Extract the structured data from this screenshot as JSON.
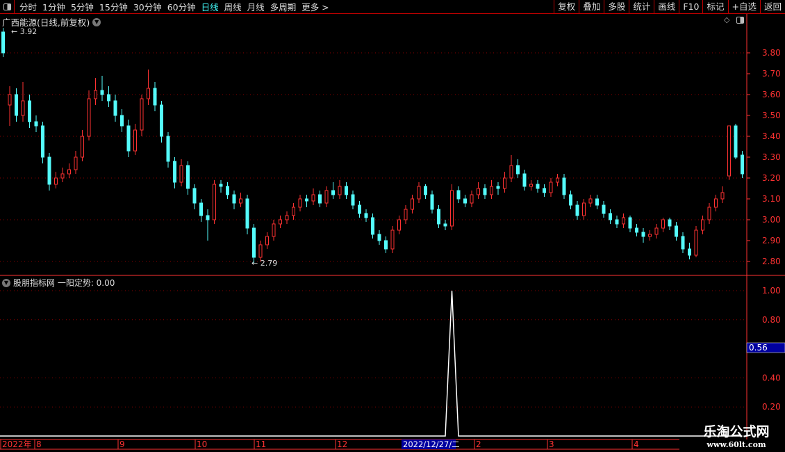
{
  "toolbar": {
    "periods": [
      "分时",
      "1分钟",
      "5分钟",
      "15分钟",
      "30分钟",
      "60分钟",
      "日线",
      "周线",
      "月线",
      "多周期",
      "更多 >"
    ],
    "active": "日线",
    "right_buttons": [
      "复权",
      "叠加",
      "多股",
      "统计",
      "画线",
      "F10",
      "标记",
      "+自选",
      "返回"
    ]
  },
  "main_title": "广西能源(日线,前复权)",
  "indicator_title": "股朋指标网 一阳定势: 0.00",
  "watermark": {
    "name": "乐淘公式网",
    "url": "www.60lt.com"
  },
  "colors": {
    "up": "#ff3232",
    "down": "#54fcfc",
    "grid": "#8b0000",
    "axis": "#ff3232",
    "highlight": "#0000a0"
  },
  "chart_data": [
    {
      "type": "candlestick",
      "yaxis_labels": [
        "3.80",
        "3.70",
        "3.60",
        "3.50",
        "3.40",
        "3.30",
        "3.20",
        "3.10",
        "3.00",
        "2.90",
        "2.80"
      ],
      "ylim": [
        2.76,
        3.98
      ],
      "annotations": {
        "max": "3.92",
        "min": "2.79"
      },
      "candles_ohlc": [
        [
          3.9,
          3.92,
          3.78,
          3.8
        ],
        [
          3.55,
          3.64,
          3.45,
          3.6
        ],
        [
          3.6,
          3.63,
          3.47,
          3.5
        ],
        [
          3.5,
          3.66,
          3.47,
          3.57
        ],
        [
          3.57,
          3.6,
          3.44,
          3.47
        ],
        [
          3.47,
          3.5,
          3.42,
          3.45
        ],
        [
          3.45,
          3.47,
          3.27,
          3.3
        ],
        [
          3.3,
          3.32,
          3.14,
          3.17
        ],
        [
          3.17,
          3.23,
          3.15,
          3.2
        ],
        [
          3.2,
          3.25,
          3.18,
          3.22
        ],
        [
          3.22,
          3.27,
          3.2,
          3.24
        ],
        [
          3.24,
          3.33,
          3.22,
          3.3
        ],
        [
          3.3,
          3.43,
          3.28,
          3.4
        ],
        [
          3.4,
          3.62,
          3.38,
          3.58
        ],
        [
          3.58,
          3.68,
          3.55,
          3.62
        ],
        [
          3.62,
          3.69,
          3.57,
          3.6
        ],
        [
          3.6,
          3.64,
          3.54,
          3.57
        ],
        [
          3.57,
          3.6,
          3.47,
          3.5
        ],
        [
          3.5,
          3.53,
          3.42,
          3.45
        ],
        [
          3.45,
          3.48,
          3.3,
          3.33
        ],
        [
          3.33,
          3.46,
          3.31,
          3.43
        ],
        [
          3.43,
          3.6,
          3.4,
          3.58
        ],
        [
          3.58,
          3.72,
          3.55,
          3.63
        ],
        [
          3.63,
          3.66,
          3.52,
          3.55
        ],
        [
          3.55,
          3.57,
          3.37,
          3.4
        ],
        [
          3.4,
          3.42,
          3.25,
          3.28
        ],
        [
          3.28,
          3.3,
          3.15,
          3.18
        ],
        [
          3.18,
          3.29,
          3.16,
          3.26
        ],
        [
          3.26,
          3.28,
          3.12,
          3.15
        ],
        [
          3.15,
          3.17,
          3.05,
          3.08
        ],
        [
          3.08,
          3.1,
          2.99,
          3.02
        ],
        [
          3.02,
          3.05,
          2.9,
          3.0
        ],
        [
          3.0,
          3.19,
          2.98,
          3.17
        ],
        [
          3.17,
          3.19,
          3.13,
          3.16
        ],
        [
          3.16,
          3.18,
          3.1,
          3.12
        ],
        [
          3.12,
          3.14,
          3.05,
          3.08
        ],
        [
          3.08,
          3.13,
          3.06,
          3.1
        ],
        [
          3.1,
          3.12,
          2.93,
          2.96
        ],
        [
          2.96,
          2.98,
          2.79,
          2.82
        ],
        [
          2.82,
          2.9,
          2.8,
          2.88
        ],
        [
          2.88,
          2.94,
          2.86,
          2.92
        ],
        [
          2.92,
          3.0,
          2.9,
          2.98
        ],
        [
          2.98,
          3.02,
          2.96,
          3.0
        ],
        [
          3.0,
          3.04,
          2.98,
          3.02
        ],
        [
          3.02,
          3.08,
          3.0,
          3.06
        ],
        [
          3.06,
          3.12,
          3.04,
          3.1
        ],
        [
          3.1,
          3.12,
          3.06,
          3.09
        ],
        [
          3.09,
          3.15,
          3.07,
          3.12
        ],
        [
          3.12,
          3.14,
          3.06,
          3.08
        ],
        [
          3.08,
          3.16,
          3.06,
          3.14
        ],
        [
          3.14,
          3.18,
          3.1,
          3.12
        ],
        [
          3.12,
          3.19,
          3.1,
          3.16
        ],
        [
          3.16,
          3.18,
          3.1,
          3.12
        ],
        [
          3.12,
          3.14,
          3.05,
          3.07
        ],
        [
          3.07,
          3.09,
          3.01,
          3.03
        ],
        [
          3.03,
          3.05,
          2.99,
          3.01
        ],
        [
          3.01,
          3.03,
          2.91,
          2.93
        ],
        [
          2.93,
          2.95,
          2.88,
          2.9
        ],
        [
          2.9,
          2.92,
          2.84,
          2.86
        ],
        [
          2.86,
          2.97,
          2.84,
          2.95
        ],
        [
          2.95,
          3.02,
          2.93,
          3.0
        ],
        [
          3.0,
          3.07,
          2.98,
          3.05
        ],
        [
          3.05,
          3.12,
          3.03,
          3.1
        ],
        [
          3.1,
          3.18,
          3.08,
          3.16
        ],
        [
          3.16,
          3.17,
          3.1,
          3.12
        ],
        [
          3.12,
          3.14,
          3.03,
          3.05
        ],
        [
          3.05,
          3.07,
          2.96,
          2.98
        ],
        [
          2.98,
          3.0,
          2.95,
          2.97
        ],
        [
          2.97,
          3.17,
          2.95,
          3.14
        ],
        [
          3.14,
          3.16,
          3.08,
          3.1
        ],
        [
          3.1,
          3.12,
          3.06,
          3.08
        ],
        [
          3.08,
          3.14,
          3.06,
          3.12
        ],
        [
          3.12,
          3.18,
          3.1,
          3.15
        ],
        [
          3.15,
          3.17,
          3.1,
          3.12
        ],
        [
          3.12,
          3.19,
          3.1,
          3.16
        ],
        [
          3.16,
          3.18,
          3.12,
          3.15
        ],
        [
          3.15,
          3.23,
          3.13,
          3.2
        ],
        [
          3.2,
          3.31,
          3.18,
          3.26
        ],
        [
          3.26,
          3.29,
          3.2,
          3.22
        ],
        [
          3.22,
          3.24,
          3.14,
          3.16
        ],
        [
          3.16,
          3.19,
          3.14,
          3.17
        ],
        [
          3.17,
          3.19,
          3.13,
          3.15
        ],
        [
          3.15,
          3.17,
          3.11,
          3.13
        ],
        [
          3.13,
          3.2,
          3.11,
          3.18
        ],
        [
          3.18,
          3.22,
          3.16,
          3.2
        ],
        [
          3.2,
          3.22,
          3.1,
          3.12
        ],
        [
          3.12,
          3.14,
          3.05,
          3.07
        ],
        [
          3.07,
          3.09,
          3.0,
          3.02
        ],
        [
          3.02,
          3.1,
          3.0,
          3.08
        ],
        [
          3.08,
          3.12,
          3.06,
          3.1
        ],
        [
          3.1,
          3.12,
          3.05,
          3.07
        ],
        [
          3.07,
          3.09,
          3.01,
          3.03
        ],
        [
          3.03,
          3.05,
          2.98,
          3.0
        ],
        [
          3.0,
          3.02,
          2.96,
          2.98
        ],
        [
          2.98,
          3.03,
          2.96,
          3.01
        ],
        [
          3.01,
          3.02,
          2.94,
          2.96
        ],
        [
          2.96,
          2.98,
          2.92,
          2.94
        ],
        [
          2.94,
          2.96,
          2.89,
          2.92
        ],
        [
          2.92,
          2.95,
          2.9,
          2.93
        ],
        [
          2.93,
          2.98,
          2.91,
          2.96
        ],
        [
          2.96,
          3.01,
          2.94,
          3.0
        ],
        [
          3.0,
          3.01,
          2.95,
          2.97
        ],
        [
          2.97,
          2.99,
          2.9,
          2.92
        ],
        [
          2.92,
          2.94,
          2.84,
          2.86
        ],
        [
          2.86,
          2.89,
          2.81,
          2.83
        ],
        [
          2.83,
          2.97,
          2.82,
          2.95
        ],
        [
          2.95,
          3.02,
          2.93,
          3.0
        ],
        [
          3.0,
          3.08,
          2.98,
          3.06
        ],
        [
          3.06,
          3.12,
          3.04,
          3.1
        ],
        [
          3.1,
          3.16,
          3.08,
          3.13
        ],
        [
          3.21,
          3.45,
          3.19,
          3.45
        ],
        [
          3.45,
          3.46,
          3.29,
          3.3
        ],
        [
          3.31,
          3.33,
          3.2,
          3.22
        ]
      ]
    },
    {
      "type": "line",
      "name": "一阳定势",
      "yaxis_labels": [
        "1.00",
        "0.80",
        "0.40",
        "0.20"
      ],
      "ylim": [
        0,
        1.05
      ],
      "cursor_value": "0.56",
      "spike_index": 68,
      "values_note_zero_elsewhere": true
    }
  ],
  "x_axis": {
    "labels": [
      "2022年",
      "8",
      "9",
      "10",
      "11",
      "12",
      "2",
      "3",
      "4"
    ],
    "selected_date": "2022/12/27/二"
  }
}
